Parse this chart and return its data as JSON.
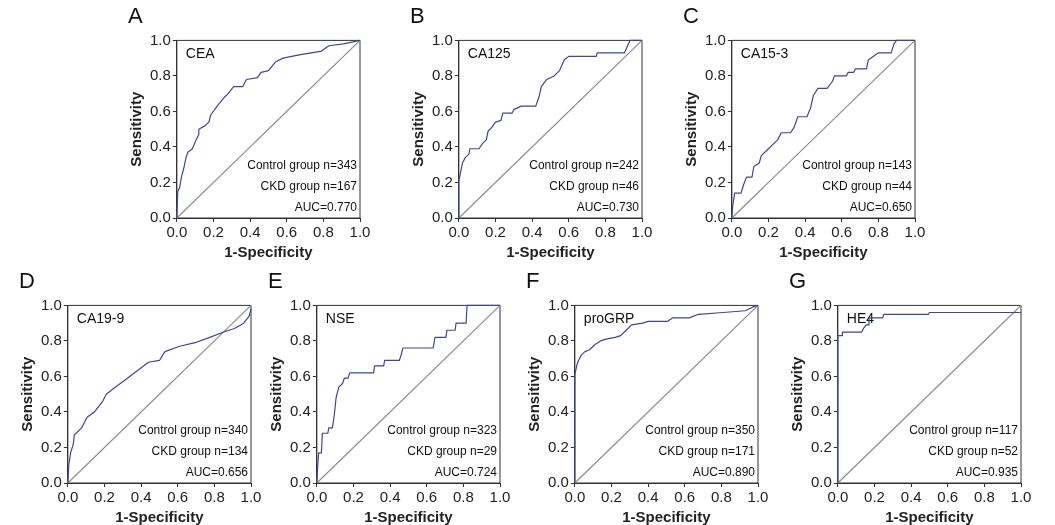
{
  "chart_data": [
    {
      "type": "line",
      "title": "A",
      "xlabel": "1-Specificity",
      "ylabel": "Sensitivity",
      "xlim": [
        0,
        1
      ],
      "ylim": [
        0,
        1
      ],
      "xticks": [
        {
          "value": 0,
          "label": "0.0"
        },
        {
          "value": 0.2,
          "label": "0.2"
        },
        {
          "value": 0.4,
          "label": "0.4"
        },
        {
          "value": 0.6,
          "label": "0.6"
        },
        {
          "value": 0.8,
          "label": "0.8"
        },
        {
          "value": 1,
          "label": "1.0"
        }
      ],
      "yticks": [
        {
          "value": 0,
          "label": "0.0"
        },
        {
          "value": 0.2,
          "label": "0.2"
        },
        {
          "value": 0.4,
          "label": "0.4"
        },
        {
          "value": 0.6,
          "label": "0.6"
        },
        {
          "value": 0.8,
          "label": "0.8"
        },
        {
          "value": 1,
          "label": "1.0"
        }
      ],
      "annotations": [
        "CEA",
        "Control group n=343",
        "CKD group n=167",
        "AUC=0.770"
      ],
      "series": [
        {
          "color": "#3c4a8c",
          "x": [
            0,
            0.005,
            0.015,
            0.025,
            0.04,
            0.05,
            0.06,
            0.085,
            0.105,
            0.12,
            0.12,
            0.155,
            0.175,
            0.185,
            0.22,
            0.26,
            0.28,
            0.31,
            0.36,
            0.38,
            0.44,
            0.46,
            0.5,
            0.54,
            0.58,
            0.675,
            0.735,
            0.79,
            0.83,
            0.91,
            1
          ],
          "values": [
            0,
            0.15,
            0.17,
            0.23,
            0.29,
            0.34,
            0.37,
            0.39,
            0.44,
            0.47,
            0.5,
            0.52,
            0.54,
            0.58,
            0.63,
            0.68,
            0.7,
            0.74,
            0.74,
            0.78,
            0.79,
            0.82,
            0.83,
            0.88,
            0.9,
            0.92,
            0.93,
            0.94,
            0.97,
            0.98,
            1
          ]
        },
        {
          "color": "#8c8c8c",
          "x": [
            0,
            1
          ],
          "values": [
            0,
            1
          ]
        }
      ]
    },
    {
      "type": "line",
      "title": "B",
      "xlabel": "1-Specificity",
      "ylabel": "Sensitivity",
      "xlim": [
        0,
        1
      ],
      "ylim": [
        0,
        1
      ],
      "xticks": [
        {
          "value": 0,
          "label": "0.0"
        },
        {
          "value": 0.2,
          "label": "0.2"
        },
        {
          "value": 0.4,
          "label": "0.4"
        },
        {
          "value": 0.6,
          "label": "0.6"
        },
        {
          "value": 0.8,
          "label": "0.8"
        },
        {
          "value": 1,
          "label": "1.0"
        }
      ],
      "yticks": [
        {
          "value": 0,
          "label": "0.0"
        },
        {
          "value": 0.2,
          "label": "0.2"
        },
        {
          "value": 0.4,
          "label": "0.4"
        },
        {
          "value": 0.6,
          "label": "0.6"
        },
        {
          "value": 0.8,
          "label": "0.8"
        },
        {
          "value": 1,
          "label": "1.0"
        }
      ],
      "annotations": [
        "CA125",
        "Control group n=242",
        "CKD group n=46",
        "AUC=0.730"
      ],
      "series": [
        {
          "color": "#3c4a8c",
          "x": [
            0,
            0,
            0.01,
            0.02,
            0.035,
            0.055,
            0.06,
            0.11,
            0.13,
            0.15,
            0.16,
            0.18,
            0.2,
            0.23,
            0.24,
            0.29,
            0.3,
            0.34,
            0.42,
            0.44,
            0.45,
            0.48,
            0.52,
            0.55,
            0.575,
            0.6,
            0.75,
            0.755,
            0.905,
            0.925,
            0.935,
            1
          ],
          "values": [
            0,
            0.21,
            0.26,
            0.31,
            0.34,
            0.36,
            0.39,
            0.39,
            0.42,
            0.44,
            0.49,
            0.51,
            0.54,
            0.55,
            0.59,
            0.59,
            0.61,
            0.63,
            0.63,
            0.69,
            0.74,
            0.78,
            0.8,
            0.83,
            0.89,
            0.91,
            0.91,
            0.93,
            0.93,
            0.98,
            1,
            1
          ]
        },
        {
          "color": "#8c8c8c",
          "x": [
            0,
            1
          ],
          "values": [
            0,
            1
          ]
        }
      ]
    },
    {
      "type": "line",
      "title": "C",
      "xlabel": "1-Specificity",
      "ylabel": "Sensitivity",
      "xlim": [
        0,
        1
      ],
      "ylim": [
        0,
        1
      ],
      "xticks": [
        {
          "value": 0,
          "label": "0.0"
        },
        {
          "value": 0.2,
          "label": "0.2"
        },
        {
          "value": 0.4,
          "label": "0.4"
        },
        {
          "value": 0.6,
          "label": "0.6"
        },
        {
          "value": 0.8,
          "label": "0.8"
        },
        {
          "value": 1,
          "label": "1.0"
        }
      ],
      "yticks": [
        {
          "value": 0,
          "label": "0.0"
        },
        {
          "value": 0.2,
          "label": "0.2"
        },
        {
          "value": 0.4,
          "label": "0.4"
        },
        {
          "value": 0.6,
          "label": "0.6"
        },
        {
          "value": 0.8,
          "label": "0.8"
        },
        {
          "value": 1,
          "label": "1.0"
        }
      ],
      "annotations": [
        "CA15-3",
        "Control group n=143",
        "CKD group n=44",
        "AUC=0.650"
      ],
      "series": [
        {
          "color": "#3c4a8c",
          "x": [
            0,
            0.005,
            0.015,
            0.05,
            0.065,
            0.08,
            0.11,
            0.12,
            0.15,
            0.16,
            0.19,
            0.22,
            0.25,
            0.27,
            0.32,
            0.34,
            0.36,
            0.41,
            0.43,
            0.445,
            0.47,
            0.52,
            0.55,
            0.56,
            0.625,
            0.635,
            0.665,
            0.675,
            0.735,
            0.745,
            0.8,
            0.87,
            0.885,
            0.9,
            1
          ],
          "values": [
            0,
            0.07,
            0.14,
            0.14,
            0.19,
            0.23,
            0.23,
            0.29,
            0.31,
            0.35,
            0.38,
            0.41,
            0.44,
            0.48,
            0.48,
            0.51,
            0.57,
            0.57,
            0.62,
            0.69,
            0.73,
            0.73,
            0.77,
            0.8,
            0.8,
            0.82,
            0.82,
            0.84,
            0.84,
            0.89,
            0.93,
            0.93,
            0.98,
            1,
            1
          ]
        },
        {
          "color": "#8c8c8c",
          "x": [
            0,
            1
          ],
          "values": [
            0,
            1
          ]
        }
      ]
    },
    {
      "type": "line",
      "title": "D",
      "xlabel": "1-Specificity",
      "ylabel": "Sensitivity",
      "xlim": [
        0,
        1
      ],
      "ylim": [
        0,
        1
      ],
      "xticks": [
        {
          "value": 0,
          "label": "0.0"
        },
        {
          "value": 0.2,
          "label": "0.2"
        },
        {
          "value": 0.4,
          "label": "0.4"
        },
        {
          "value": 0.6,
          "label": "0.6"
        },
        {
          "value": 0.8,
          "label": "0.8"
        },
        {
          "value": 1,
          "label": "1.0"
        }
      ],
      "yticks": [
        {
          "value": 0,
          "label": "0.0"
        },
        {
          "value": 0.2,
          "label": "0.2"
        },
        {
          "value": 0.4,
          "label": "0.4"
        },
        {
          "value": 0.6,
          "label": "0.6"
        },
        {
          "value": 0.8,
          "label": "0.8"
        },
        {
          "value": 1,
          "label": "1.0"
        }
      ],
      "annotations": [
        "CA19-9",
        "Control group n=340",
        "CKD group n=134",
        "AUC=0.656"
      ],
      "series": [
        {
          "color": "#3c4a8c",
          "x": [
            0,
            0.005,
            0.015,
            0.03,
            0.035,
            0.075,
            0.105,
            0.145,
            0.19,
            0.21,
            0.26,
            0.3,
            0.35,
            0.39,
            0.44,
            0.5,
            0.53,
            0.61,
            0.695,
            0.775,
            0.85,
            0.91,
            0.96,
            0.99,
            1
          ],
          "values": [
            0,
            0.1,
            0.17,
            0.22,
            0.27,
            0.31,
            0.37,
            0.4,
            0.46,
            0.5,
            0.54,
            0.57,
            0.61,
            0.64,
            0.68,
            0.69,
            0.74,
            0.77,
            0.79,
            0.82,
            0.85,
            0.87,
            0.9,
            0.94,
            0.98
          ]
        },
        {
          "color": "#8c8c8c",
          "x": [
            0,
            1
          ],
          "values": [
            0,
            1
          ]
        }
      ]
    },
    {
      "type": "line",
      "title": "E",
      "xlabel": "1-Specificity",
      "ylabel": "Sensitivity",
      "xlim": [
        0,
        1
      ],
      "ylim": [
        0,
        1
      ],
      "xticks": [
        {
          "value": 0,
          "label": "0.0"
        },
        {
          "value": 0.2,
          "label": "0.2"
        },
        {
          "value": 0.4,
          "label": "0.4"
        },
        {
          "value": 0.6,
          "label": "0.6"
        },
        {
          "value": 0.8,
          "label": "0.8"
        },
        {
          "value": 1,
          "label": "1.0"
        }
      ],
      "yticks": [
        {
          "value": 0,
          "label": "0.0"
        },
        {
          "value": 0.2,
          "label": "0.2"
        },
        {
          "value": 0.4,
          "label": "0.4"
        },
        {
          "value": 0.6,
          "label": "0.6"
        },
        {
          "value": 0.8,
          "label": "0.8"
        },
        {
          "value": 1,
          "label": "1.0"
        }
      ],
      "annotations": [
        "NSE",
        "Control group n=323",
        "CKD group n=29",
        "AUC=0.724"
      ],
      "series": [
        {
          "color": "#3c4a8c",
          "x": [
            0,
            0.005,
            0.01,
            0.025,
            0.03,
            0.06,
            0.065,
            0.085,
            0.095,
            0.105,
            0.12,
            0.14,
            0.15,
            0.17,
            0.18,
            0.31,
            0.315,
            0.365,
            0.37,
            0.45,
            0.46,
            0.47,
            0.635,
            0.645,
            0.705,
            0.71,
            0.755,
            0.76,
            0.815,
            0.82,
            1
          ],
          "values": [
            0,
            0.1,
            0.17,
            0.17,
            0.28,
            0.28,
            0.31,
            0.31,
            0.38,
            0.48,
            0.54,
            0.56,
            0.59,
            0.59,
            0.62,
            0.62,
            0.66,
            0.66,
            0.69,
            0.69,
            0.72,
            0.76,
            0.76,
            0.82,
            0.82,
            0.86,
            0.86,
            0.9,
            0.9,
            1,
            1
          ]
        },
        {
          "color": "#8c8c8c",
          "x": [
            0,
            1
          ],
          "values": [
            0,
            1
          ]
        }
      ]
    },
    {
      "type": "line",
      "title": "F",
      "xlabel": "1-Specificity",
      "ylabel": "Sensitivity",
      "xlim": [
        0,
        1
      ],
      "ylim": [
        0,
        1
      ],
      "xticks": [
        {
          "value": 0,
          "label": "0.0"
        },
        {
          "value": 0.2,
          "label": "0.2"
        },
        {
          "value": 0.4,
          "label": "0.4"
        },
        {
          "value": 0.6,
          "label": "0.6"
        },
        {
          "value": 0.8,
          "label": "0.8"
        },
        {
          "value": 1,
          "label": "1.0"
        }
      ],
      "yticks": [
        {
          "value": 0,
          "label": "0.0"
        },
        {
          "value": 0.2,
          "label": "0.2"
        },
        {
          "value": 0.4,
          "label": "0.4"
        },
        {
          "value": 0.6,
          "label": "0.6"
        },
        {
          "value": 0.8,
          "label": "0.8"
        },
        {
          "value": 1,
          "label": "1.0"
        }
      ],
      "annotations": [
        "proGRP",
        "Control group n=350",
        "CKD group n=171",
        "AUC=0.890"
      ],
      "series": [
        {
          "color": "#3c4a8c",
          "x": [
            0,
            0,
            0.01,
            0.02,
            0.035,
            0.055,
            0.08,
            0.11,
            0.14,
            0.17,
            0.22,
            0.25,
            0.28,
            0.31,
            0.37,
            0.4,
            0.505,
            0.535,
            0.625,
            0.675,
            0.81,
            0.93,
            0.97,
            1
          ],
          "values": [
            0,
            0.61,
            0.66,
            0.69,
            0.72,
            0.74,
            0.75,
            0.78,
            0.8,
            0.81,
            0.82,
            0.83,
            0.86,
            0.89,
            0.9,
            0.91,
            0.91,
            0.93,
            0.93,
            0.95,
            0.96,
            0.97,
            0.99,
            1
          ]
        },
        {
          "color": "#8c8c8c",
          "x": [
            0,
            1
          ],
          "values": [
            0,
            1
          ]
        }
      ]
    },
    {
      "type": "line",
      "title": "G",
      "xlabel": "1-Specificity",
      "ylabel": "Sensitivity",
      "xlim": [
        0,
        1
      ],
      "ylim": [
        0,
        1
      ],
      "xticks": [
        {
          "value": 0,
          "label": "0.0"
        },
        {
          "value": 0.2,
          "label": "0.2"
        },
        {
          "value": 0.4,
          "label": "0.4"
        },
        {
          "value": 0.6,
          "label": "0.6"
        },
        {
          "value": 0.8,
          "label": "0.8"
        },
        {
          "value": 1,
          "label": "1.0"
        }
      ],
      "yticks": [
        {
          "value": 0,
          "label": "0.0"
        },
        {
          "value": 0.2,
          "label": "0.2"
        },
        {
          "value": 0.4,
          "label": "0.4"
        },
        {
          "value": 0.6,
          "label": "0.6"
        },
        {
          "value": 0.8,
          "label": "0.8"
        },
        {
          "value": 1,
          "label": "1.0"
        }
      ],
      "annotations": [
        "HE4",
        "Control group n=117",
        "CKD group n=52",
        "AUC=0.935"
      ],
      "series": [
        {
          "color": "#3c4a8c",
          "x": [
            0,
            0,
            0.025,
            0.025,
            0.13,
            0.14,
            0.155,
            0.17,
            0.17,
            0.245,
            0.25,
            0.495,
            0.5,
            1
          ],
          "values": [
            0,
            0.83,
            0.83,
            0.85,
            0.85,
            0.87,
            0.89,
            0.89,
            0.93,
            0.93,
            0.95,
            0.95,
            0.96,
            0.96
          ]
        },
        {
          "color": "#8c8c8c",
          "x": [
            0,
            1
          ],
          "values": [
            0,
            1
          ]
        }
      ]
    }
  ]
}
